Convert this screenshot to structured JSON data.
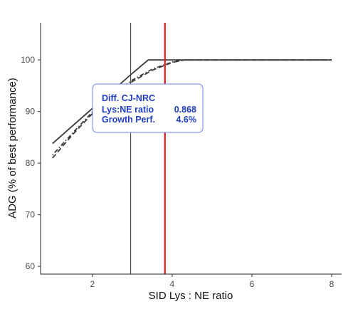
{
  "chart_data": {
    "type": "line",
    "xlabel": "SID Lys : NE ratio",
    "ylabel": "ADG (% of best performance)",
    "xlim": [
      0.7,
      8.25
    ],
    "ylim": [
      58.5,
      107.2
    ],
    "x_ticks": [
      2,
      4,
      6,
      8
    ],
    "y_ticks": [
      60,
      70,
      80,
      90,
      100
    ],
    "grid": false,
    "series": [
      {
        "style": "solid",
        "color": "#3a3a3a",
        "points": [
          [
            1.0,
            83.8
          ],
          [
            2.0,
            90.6
          ],
          [
            3.0,
            97.4
          ],
          [
            3.4,
            100.0
          ],
          [
            8.0,
            100.0
          ]
        ]
      },
      {
        "style": "dashed",
        "color": "#3a3a3a",
        "points": [
          [
            1.0,
            81.0
          ],
          [
            1.5,
            85.5
          ],
          [
            2.0,
            89.6
          ],
          [
            2.5,
            93.0
          ],
          [
            3.0,
            95.8
          ],
          [
            3.5,
            98.0
          ],
          [
            4.0,
            99.5
          ],
          [
            4.3,
            100.0
          ],
          [
            8.0,
            100.0
          ]
        ]
      },
      {
        "style": "dotdash",
        "color": "#3a3a3a",
        "points": [
          [
            1.0,
            81.6
          ],
          [
            1.5,
            85.8
          ],
          [
            2.0,
            89.9
          ],
          [
            2.5,
            93.3
          ],
          [
            3.0,
            96.1
          ],
          [
            3.5,
            98.2
          ],
          [
            4.0,
            99.6
          ],
          [
            4.3,
            100.0
          ],
          [
            8.0,
            100.0
          ]
        ]
      }
    ],
    "vlines": [
      {
        "x": 2.96,
        "color": "#333333",
        "width": 1
      },
      {
        "x": 3.82,
        "color": "#e31a1c",
        "width": 2.2
      }
    ],
    "annotation": {
      "title": "Diff. CJ-NRC",
      "rows": [
        {
          "label": "Lys:NE ratio",
          "value": "0.868"
        },
        {
          "label": "Growth Perf.",
          "value": "4.6%"
        }
      ],
      "text_color": "#1f3fbf",
      "border_color": "#6f86e8"
    }
  }
}
